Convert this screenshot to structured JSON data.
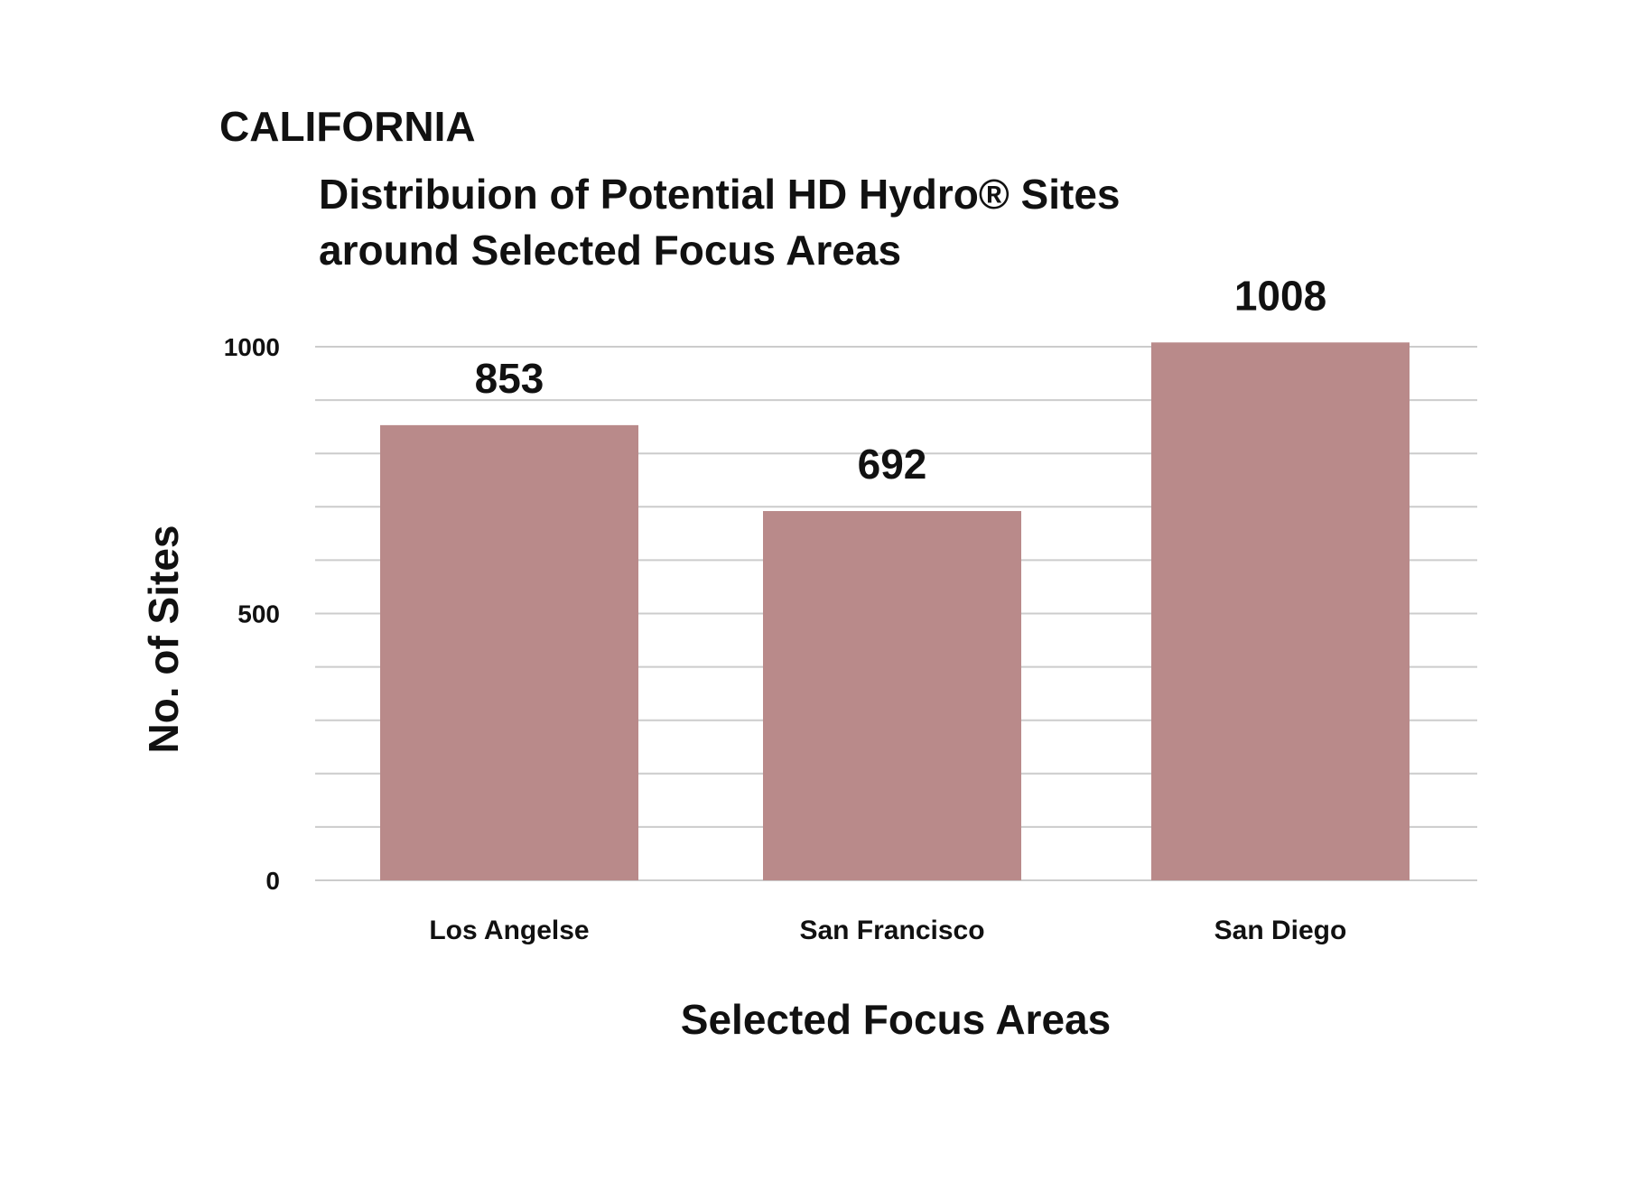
{
  "header": "CALIFORNIA",
  "chart_data": {
    "type": "bar",
    "title": [
      "Distribuion of Potential HD Hydro® Sites",
      "around Selected Focus Areas"
    ],
    "xlabel": "Selected Focus Areas",
    "ylabel": "No. of Sites",
    "categories": [
      "Los Angelse",
      "San Francisco",
      "San Diego"
    ],
    "values": [
      853,
      692,
      1008
    ],
    "ylim": [
      0,
      1000
    ],
    "yticks": [
      0,
      500,
      1000
    ],
    "minor_grid_step": 100,
    "grid": true,
    "bar_color": "#b98a8a"
  }
}
